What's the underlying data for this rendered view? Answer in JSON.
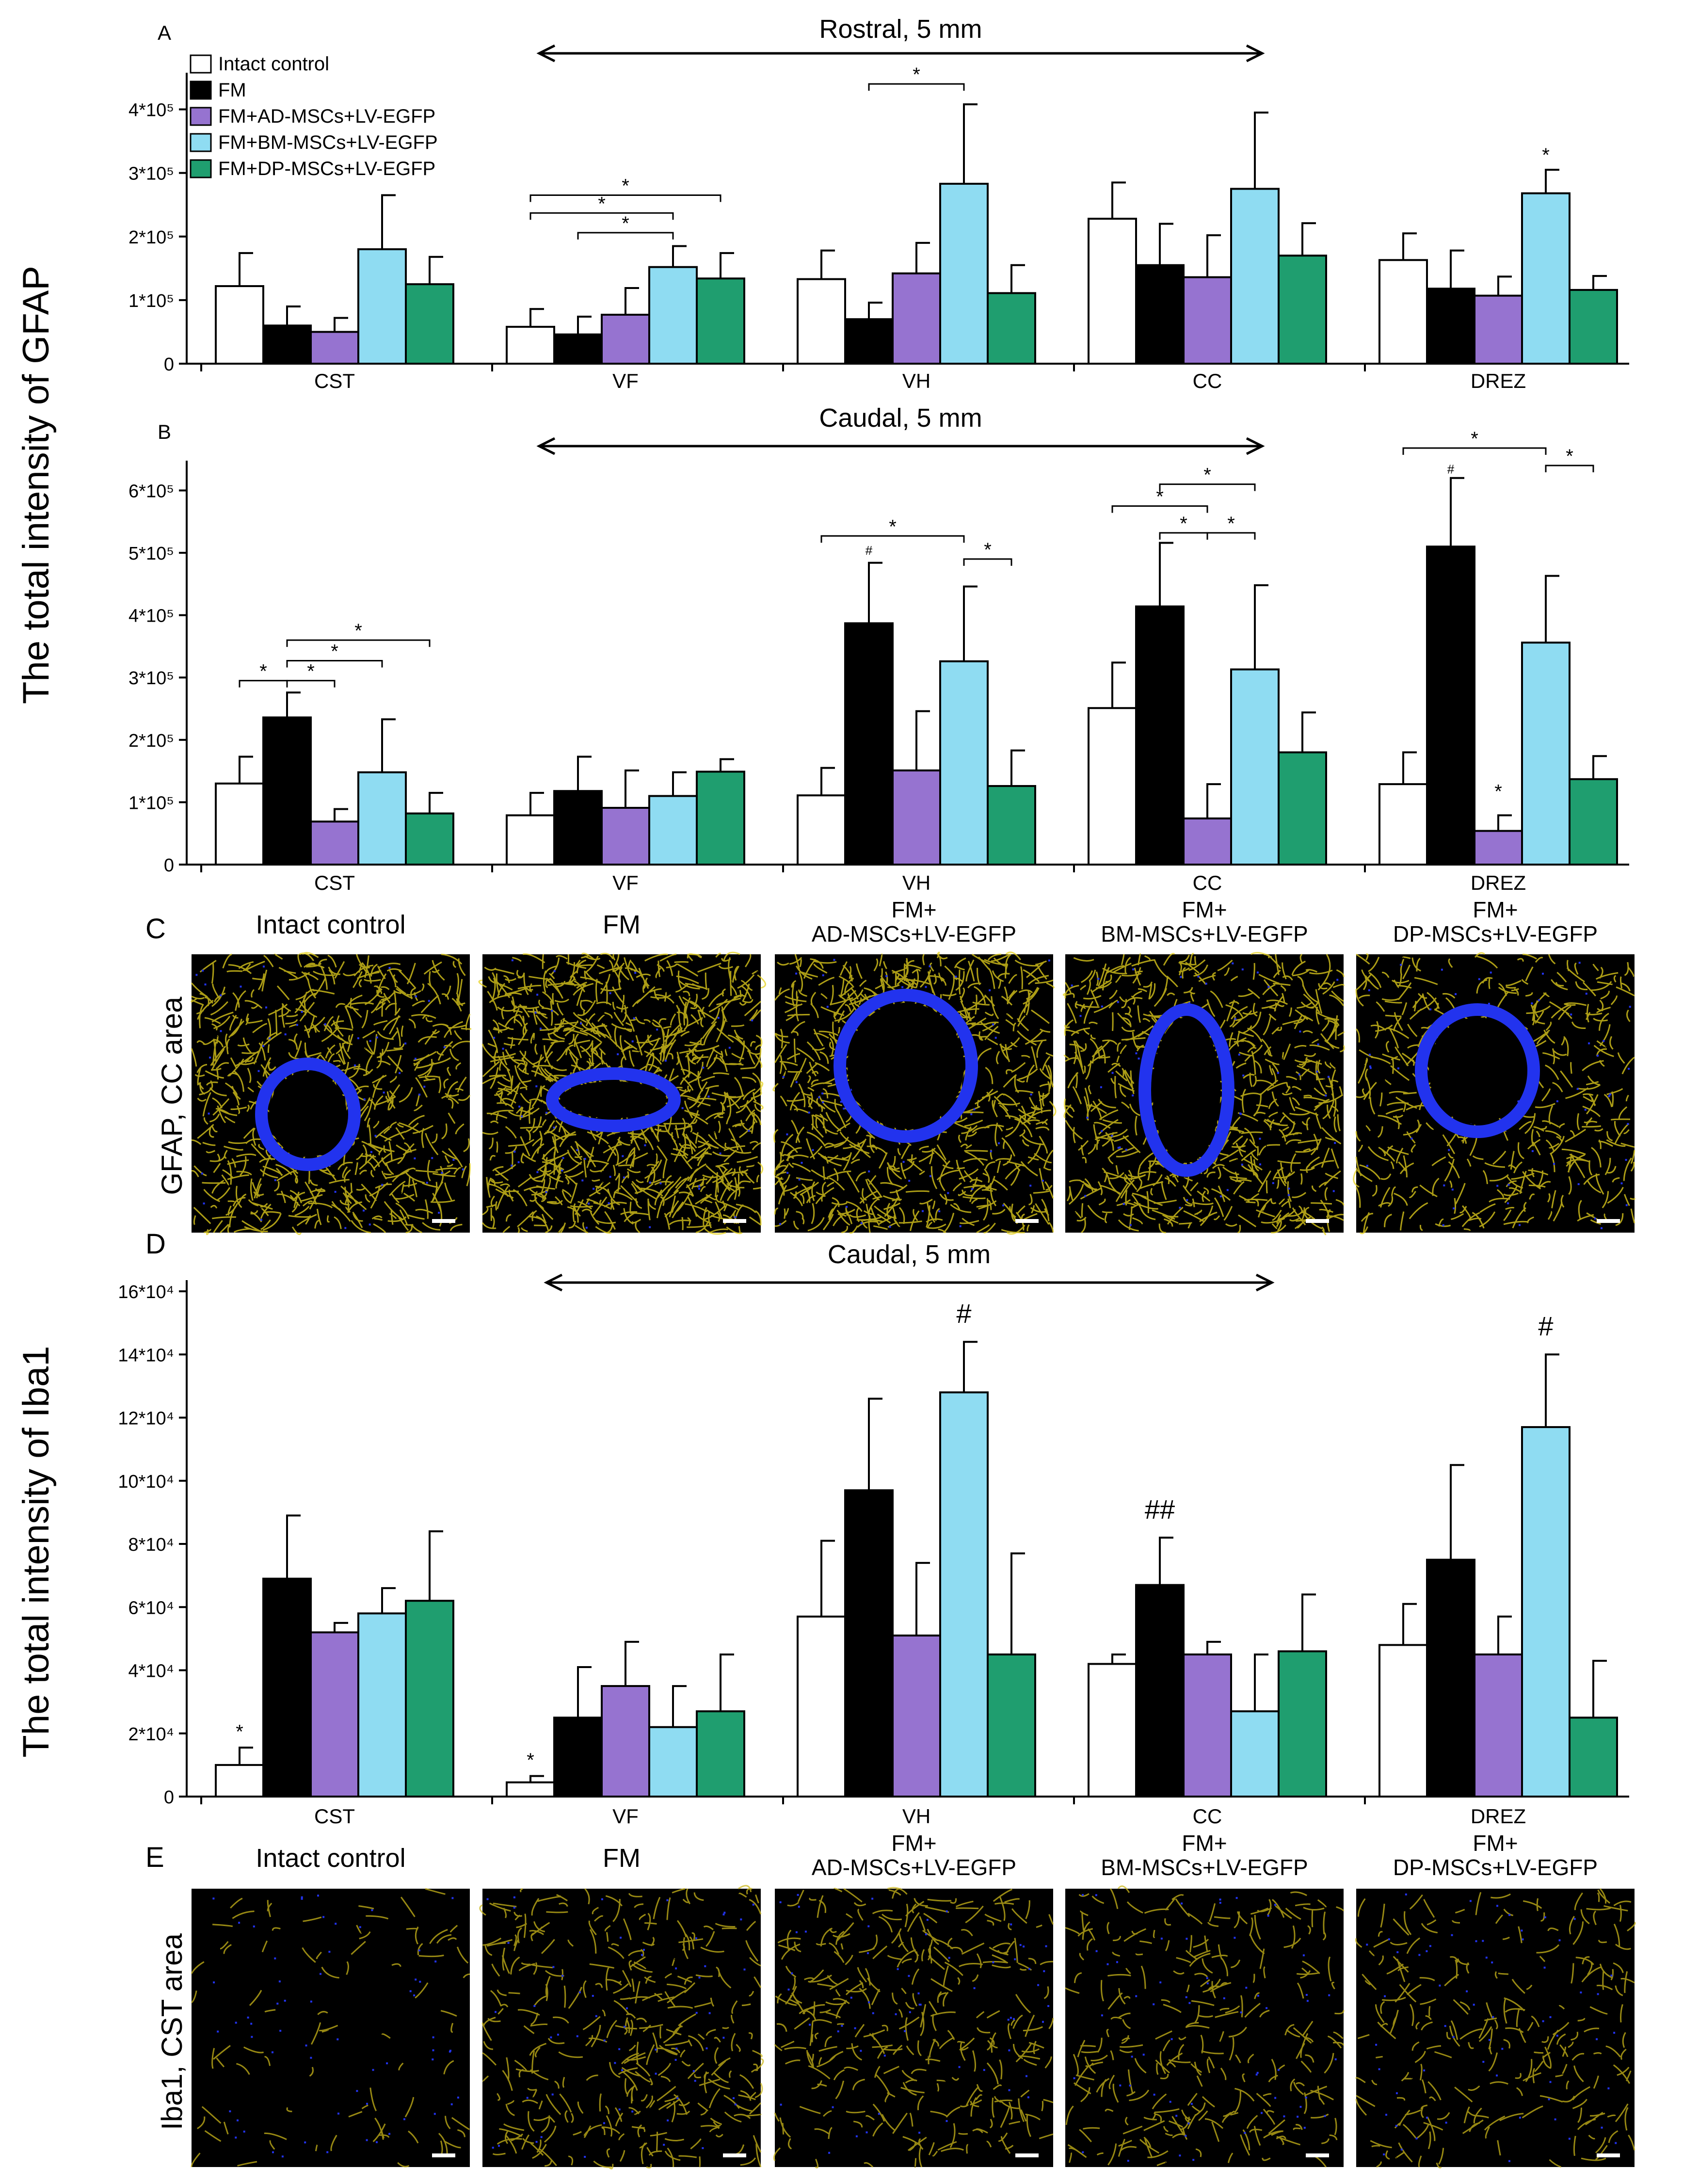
{
  "colors": {
    "intact": "#ffffff",
    "fm": "#000000",
    "ad": "#9673d0",
    "bm": "#8fdcf2",
    "dp": "#1f9e6f",
    "gfap_stain": "#e6d21e",
    "iba1_stain": "#c9b51a",
    "nuclei": "#2233ee"
  },
  "panels": {
    "A": "A",
    "B": "B",
    "C": "C",
    "D": "D",
    "E": "E"
  },
  "legend": [
    "Intact control",
    "FM",
    "FM+AD-MSCs+LV-EGFP",
    "FM+BM-MSCs+LV-EGFP",
    "FM+DP-MSCs+LV-EGFP"
  ],
  "gfap_axis_label": "The total intensity of GFAP",
  "iba1_axis_label": "The total intensity of Iba1",
  "gfap_row_label": "GFAP, CC area",
  "iba1_row_label": "Iba1, CST area",
  "micro_titles": [
    {
      "l1": "Intact control",
      "l2": ""
    },
    {
      "l1": "FM",
      "l2": ""
    },
    {
      "l1": "FM+",
      "l2": "AD-MSCs+LV-EGFP"
    },
    {
      "l1": "FM+",
      "l2": "BM-MSCs+LV-EGFP"
    },
    {
      "l1": "FM+",
      "l2": "DP-MSCs+LV-EGFP"
    }
  ],
  "chart_data": [
    {
      "id": "A",
      "type": "bar",
      "title": "Rostral, 5 mm",
      "ylabel": "The total intensity of GFAP",
      "ylim": [
        0,
        450000
      ],
      "yticks": [
        {
          "v": 0,
          "l": "0"
        },
        {
          "v": 100000,
          "l": "1*10⁵"
        },
        {
          "v": 200000,
          "l": "2*10⁵"
        },
        {
          "v": 300000,
          "l": "3*10⁵"
        },
        {
          "v": 400000,
          "l": "4*10⁵"
        }
      ],
      "categories": [
        "CST",
        "VF",
        "VH",
        "CC",
        "DREZ"
      ],
      "series": [
        {
          "name": "Intact control",
          "values": [
            122000,
            58000,
            133000,
            228000,
            163000
          ],
          "err": [
            52000,
            28000,
            45000,
            57000,
            42000
          ]
        },
        {
          "name": "FM",
          "values": [
            60000,
            46000,
            70000,
            155000,
            118000
          ],
          "err": [
            30000,
            28000,
            26000,
            65000,
            60000
          ]
        },
        {
          "name": "FM+AD-MSCs+LV-EGFP",
          "values": [
            50000,
            77000,
            142000,
            136000,
            107000
          ],
          "err": [
            22000,
            42000,
            48000,
            66000,
            30000
          ]
        },
        {
          "name": "FM+BM-MSCs+LV-EGFP",
          "values": [
            180000,
            152000,
            283000,
            275000,
            268000
          ],
          "err": [
            85000,
            33000,
            125000,
            120000,
            37000
          ]
        },
        {
          "name": "FM+DP-MSCs+LV-EGFP",
          "values": [
            125000,
            134000,
            111000,
            170000,
            116000
          ],
          "err": [
            43000,
            40000,
            44000,
            51000,
            22000
          ]
        }
      ],
      "annotations": [
        {
          "type": "bracket",
          "cat": 1,
          "from": 0,
          "to": 3,
          "y": 237000,
          "label": "*"
        },
        {
          "type": "bracket",
          "cat": 1,
          "from": 0,
          "to": 4,
          "y": 265000,
          "label": "*"
        },
        {
          "type": "bracket",
          "cat": 1,
          "from": 1,
          "to": 3,
          "y": 206000,
          "label": "*"
        },
        {
          "type": "bracket",
          "cat": 2,
          "from": 1,
          "to": 3,
          "y": 440000,
          "label": "*"
        },
        {
          "type": "mark",
          "cat": 4,
          "series": 3,
          "y": 318000,
          "label": "*"
        }
      ]
    },
    {
      "id": "B",
      "type": "bar",
      "title": "Caudal, 5 mm",
      "ylabel": "The total intensity of GFAP",
      "ylim": [
        0,
        640000
      ],
      "yticks": [
        {
          "v": 0,
          "l": "0"
        },
        {
          "v": 100000,
          "l": "1*10⁵"
        },
        {
          "v": 200000,
          "l": "2*10⁵"
        },
        {
          "v": 300000,
          "l": "3*10⁵"
        },
        {
          "v": 400000,
          "l": "4*10⁵"
        },
        {
          "v": 500000,
          "l": "5*10⁵"
        },
        {
          "v": 600000,
          "l": "6*10⁵"
        }
      ],
      "categories": [
        "CST",
        "VF",
        "VH",
        "CC",
        "DREZ"
      ],
      "series": [
        {
          "name": "Intact control",
          "values": [
            130000,
            79000,
            111000,
            251000,
            129000
          ],
          "err": [
            43000,
            36000,
            44000,
            73000,
            51000
          ]
        },
        {
          "name": "FM",
          "values": [
            236000,
            118000,
            387000,
            414000,
            510000
          ],
          "err": [
            40000,
            55000,
            97000,
            102000,
            110000
          ]
        },
        {
          "name": "FM+AD-MSCs+LV-EGFP",
          "values": [
            69000,
            91000,
            151000,
            74000,
            54000
          ],
          "err": [
            20000,
            60000,
            95000,
            55000,
            25000
          ]
        },
        {
          "name": "FM+BM-MSCs+LV-EGFP",
          "values": [
            148000,
            110000,
            326000,
            313000,
            356000
          ],
          "err": [
            85000,
            38000,
            120000,
            135000,
            107000
          ]
        },
        {
          "name": "FM+DP-MSCs+LV-EGFP",
          "values": [
            82000,
            149000,
            126000,
            180000,
            137000
          ],
          "err": [
            33000,
            20000,
            57000,
            64000,
            37000
          ]
        }
      ],
      "annotations": [
        {
          "type": "bracket",
          "cat": 0,
          "from": 0,
          "to": 1,
          "y": 295000,
          "label": "*"
        },
        {
          "type": "bracket",
          "cat": 0,
          "from": 1,
          "to": 2,
          "y": 295000,
          "label": "*"
        },
        {
          "type": "bracket",
          "cat": 0,
          "from": 1,
          "to": 3,
          "y": 327000,
          "label": "*"
        },
        {
          "type": "bracket",
          "cat": 0,
          "from": 1,
          "to": 4,
          "y": 360000,
          "label": "*"
        },
        {
          "type": "mark",
          "cat": 2,
          "series": 1,
          "y": 497000,
          "label": "#"
        },
        {
          "type": "bracket",
          "cat": 2,
          "from": 0,
          "to": 3,
          "y": 527000,
          "label": "*"
        },
        {
          "type": "bracket",
          "cat": 2,
          "from": 3,
          "to": 4,
          "y": 490000,
          "label": "*"
        },
        {
          "type": "bracket",
          "cat": 3,
          "from": 1,
          "to": 2,
          "y": 532000,
          "label": "*"
        },
        {
          "type": "bracket",
          "cat": 3,
          "from": 0,
          "to": 2,
          "y": 575000,
          "label": "*"
        },
        {
          "type": "bracket",
          "cat": 3,
          "from": 1,
          "to": 3,
          "y": 610000,
          "label": "*"
        },
        {
          "type": "bracket",
          "cat": 3,
          "from": 2,
          "to": 3,
          "y": 532000,
          "label": "*"
        },
        {
          "type": "mark",
          "cat": 4,
          "series": 1,
          "y": 627000,
          "label": "#"
        },
        {
          "type": "bracket",
          "cat": 4,
          "from": 0,
          "to": 3,
          "y": 668000,
          "label": "*"
        },
        {
          "type": "bracket",
          "cat": 4,
          "from": 3,
          "to": 4,
          "y": 640000,
          "label": "*"
        },
        {
          "type": "mark",
          "cat": 4,
          "series": 2,
          "y": 107000,
          "label": "*"
        }
      ]
    },
    {
      "id": "D",
      "type": "bar",
      "title": "Caudal, 5 mm",
      "ylabel": "The total intensity of Iba1",
      "ylim": [
        0,
        162000
      ],
      "yticks": [
        {
          "v": 0,
          "l": "0"
        },
        {
          "v": 20000,
          "l": "2*10⁴"
        },
        {
          "v": 40000,
          "l": "4*10⁴"
        },
        {
          "v": 60000,
          "l": "6*10⁴"
        },
        {
          "v": 80000,
          "l": "8*10⁴"
        },
        {
          "v": 100000,
          "l": "10*10⁴"
        },
        {
          "v": 120000,
          "l": "12*10⁴"
        },
        {
          "v": 140000,
          "l": "14*10⁴"
        },
        {
          "v": 160000,
          "l": "16*10⁴"
        }
      ],
      "categories": [
        "CST",
        "VF",
        "VH",
        "CC",
        "DREZ"
      ],
      "series": [
        {
          "name": "Intact control",
          "values": [
            10000,
            4500,
            57000,
            42000,
            48000
          ],
          "err": [
            5500,
            2000,
            24000,
            3000,
            13000
          ]
        },
        {
          "name": "FM",
          "values": [
            69000,
            25000,
            97000,
            67000,
            75000
          ],
          "err": [
            20000,
            16000,
            29000,
            15000,
            30000
          ]
        },
        {
          "name": "FM+AD-MSCs+LV-EGFP",
          "values": [
            52000,
            35000,
            51000,
            45000,
            45000
          ],
          "err": [
            3000,
            14000,
            23000,
            4000,
            12000
          ]
        },
        {
          "name": "FM+BM-MSCs+LV-EGFP",
          "values": [
            58000,
            22000,
            128000,
            27000,
            117000
          ],
          "err": [
            8000,
            13000,
            16000,
            18000,
            23000
          ]
        },
        {
          "name": "FM+DP-MSCs+LV-EGFP",
          "values": [
            62000,
            27000,
            45000,
            46000,
            25000
          ],
          "err": [
            22000,
            18000,
            32000,
            18000,
            18000
          ]
        }
      ],
      "annotations": [
        {
          "type": "mark",
          "cat": 0,
          "series": 0,
          "y": 18500,
          "label": "*"
        },
        {
          "type": "mark",
          "cat": 1,
          "series": 0,
          "y": 9500,
          "label": "*"
        },
        {
          "type": "mark",
          "cat": 2,
          "series": 3,
          "y": 150000,
          "label": "#"
        },
        {
          "type": "mark",
          "cat": 3,
          "series": 1,
          "y": 88000,
          "label": "##"
        },
        {
          "type": "mark",
          "cat": 4,
          "series": 3,
          "y": 146000,
          "label": "#"
        }
      ]
    }
  ]
}
